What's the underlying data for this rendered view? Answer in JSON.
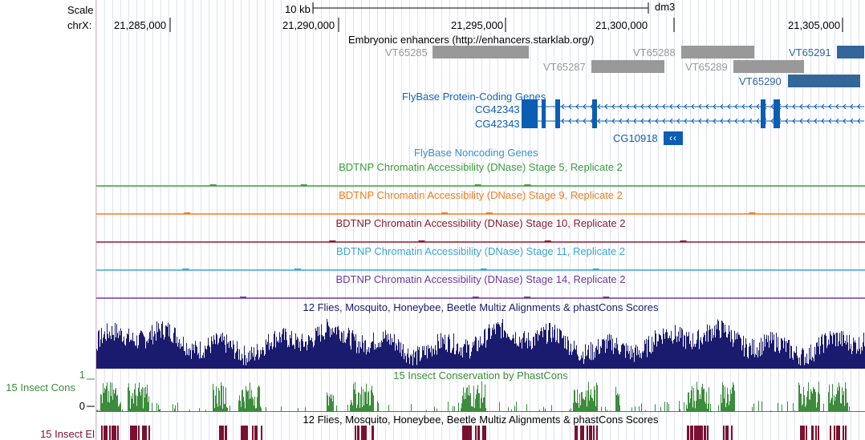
{
  "ruler": {
    "scale_label": "Scale",
    "chrom_label": "chrX:",
    "scale_bar_label": "10 kb",
    "assembly": "dm3",
    "ticks": [
      "21,285,000",
      "21,290,000",
      "21,295,000",
      "21,300,000",
      "21,305,000"
    ]
  },
  "tracks": {
    "enhancers": {
      "title": "Embryonic enhancers (http://enhancers.starklab.org/)",
      "items": [
        {
          "name": "VT65285",
          "color": "#999999"
        },
        {
          "name": "VT65287",
          "color": "#999999"
        },
        {
          "name": "VT65288",
          "color": "#999999"
        },
        {
          "name": "VT65289",
          "color": "#999999"
        },
        {
          "name": "VT65290",
          "color": "#336699"
        },
        {
          "name": "VT65291",
          "color": "#336699"
        }
      ]
    },
    "protein_coding": {
      "title": "FlyBase Protein-Coding Genes",
      "genes": [
        "CG42343",
        "CG42343",
        "CG10918"
      ],
      "color": "#0c5db4",
      "strand_glyph": "‹‹"
    },
    "noncoding": {
      "title": "FlyBase Noncoding Genes"
    },
    "dnase": [
      {
        "title": "BDTNP Chromatin Accessibility (DNase) Stage 5, Replicate 2",
        "color": "#3a9e3a"
      },
      {
        "title": "BDTNP Chromatin Accessibility (DNase) Stage 9, Replicate 2",
        "color": "#f07d21"
      },
      {
        "title": "BDTNP Chromatin Accessibility (DNase) Stage 10, Replicate 2",
        "color": "#8c1c2c"
      },
      {
        "title": "BDTNP Chromatin Accessibility (DNase) Stage 11, Replicate 2",
        "color": "#3aa6d4"
      },
      {
        "title": "BDTNP Chromatin Accessibility (DNase) Stage 14, Replicate 2",
        "color": "#6a3aa6"
      }
    ],
    "multiz": {
      "title": "12 Flies, Mosquito, Honeybee, Beetle Multiz Alignments & phastCons Scores",
      "color": "#1a1a6e"
    },
    "cons": {
      "side_label": "15 Insect Cons",
      "title": "15 Insect Conservation by PhastCons",
      "ymax": "1",
      "ymin": "0",
      "color": "#3c8c3c"
    },
    "elements": {
      "side_label": "15 Insect El",
      "title": "12 Flies, Mosquito, Honeybee, Beetle Multiz Alignments & phastCons Scores",
      "color": "#7a1030"
    }
  }
}
